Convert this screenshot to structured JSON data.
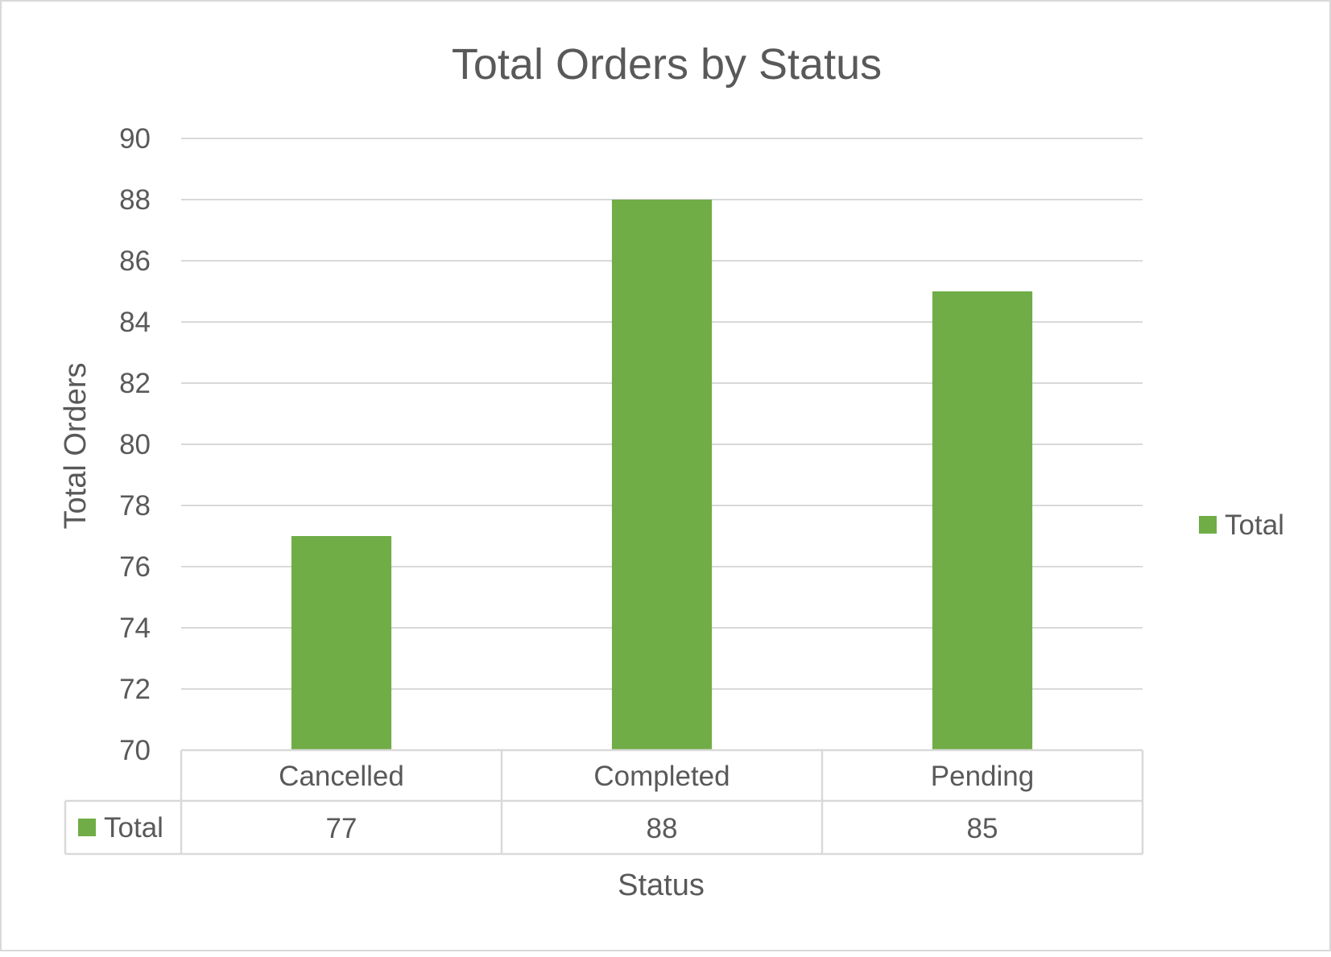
{
  "chart_data": {
    "type": "bar",
    "title": "Total Orders by Status",
    "xlabel": "Status",
    "ylabel": "Total Orders",
    "categories": [
      "Cancelled",
      "Completed",
      "Pending"
    ],
    "series": [
      {
        "name": "Total",
        "values": [
          77,
          88,
          85
        ]
      }
    ],
    "ylim": [
      70,
      90
    ],
    "yticks": [
      70,
      72,
      74,
      76,
      78,
      80,
      82,
      84,
      86,
      88,
      90
    ],
    "grid": true,
    "legend": "right",
    "data_table": true
  },
  "colors": {
    "bar": "#70ad47",
    "gridline": "#d9d9d9",
    "text": "#595959"
  }
}
